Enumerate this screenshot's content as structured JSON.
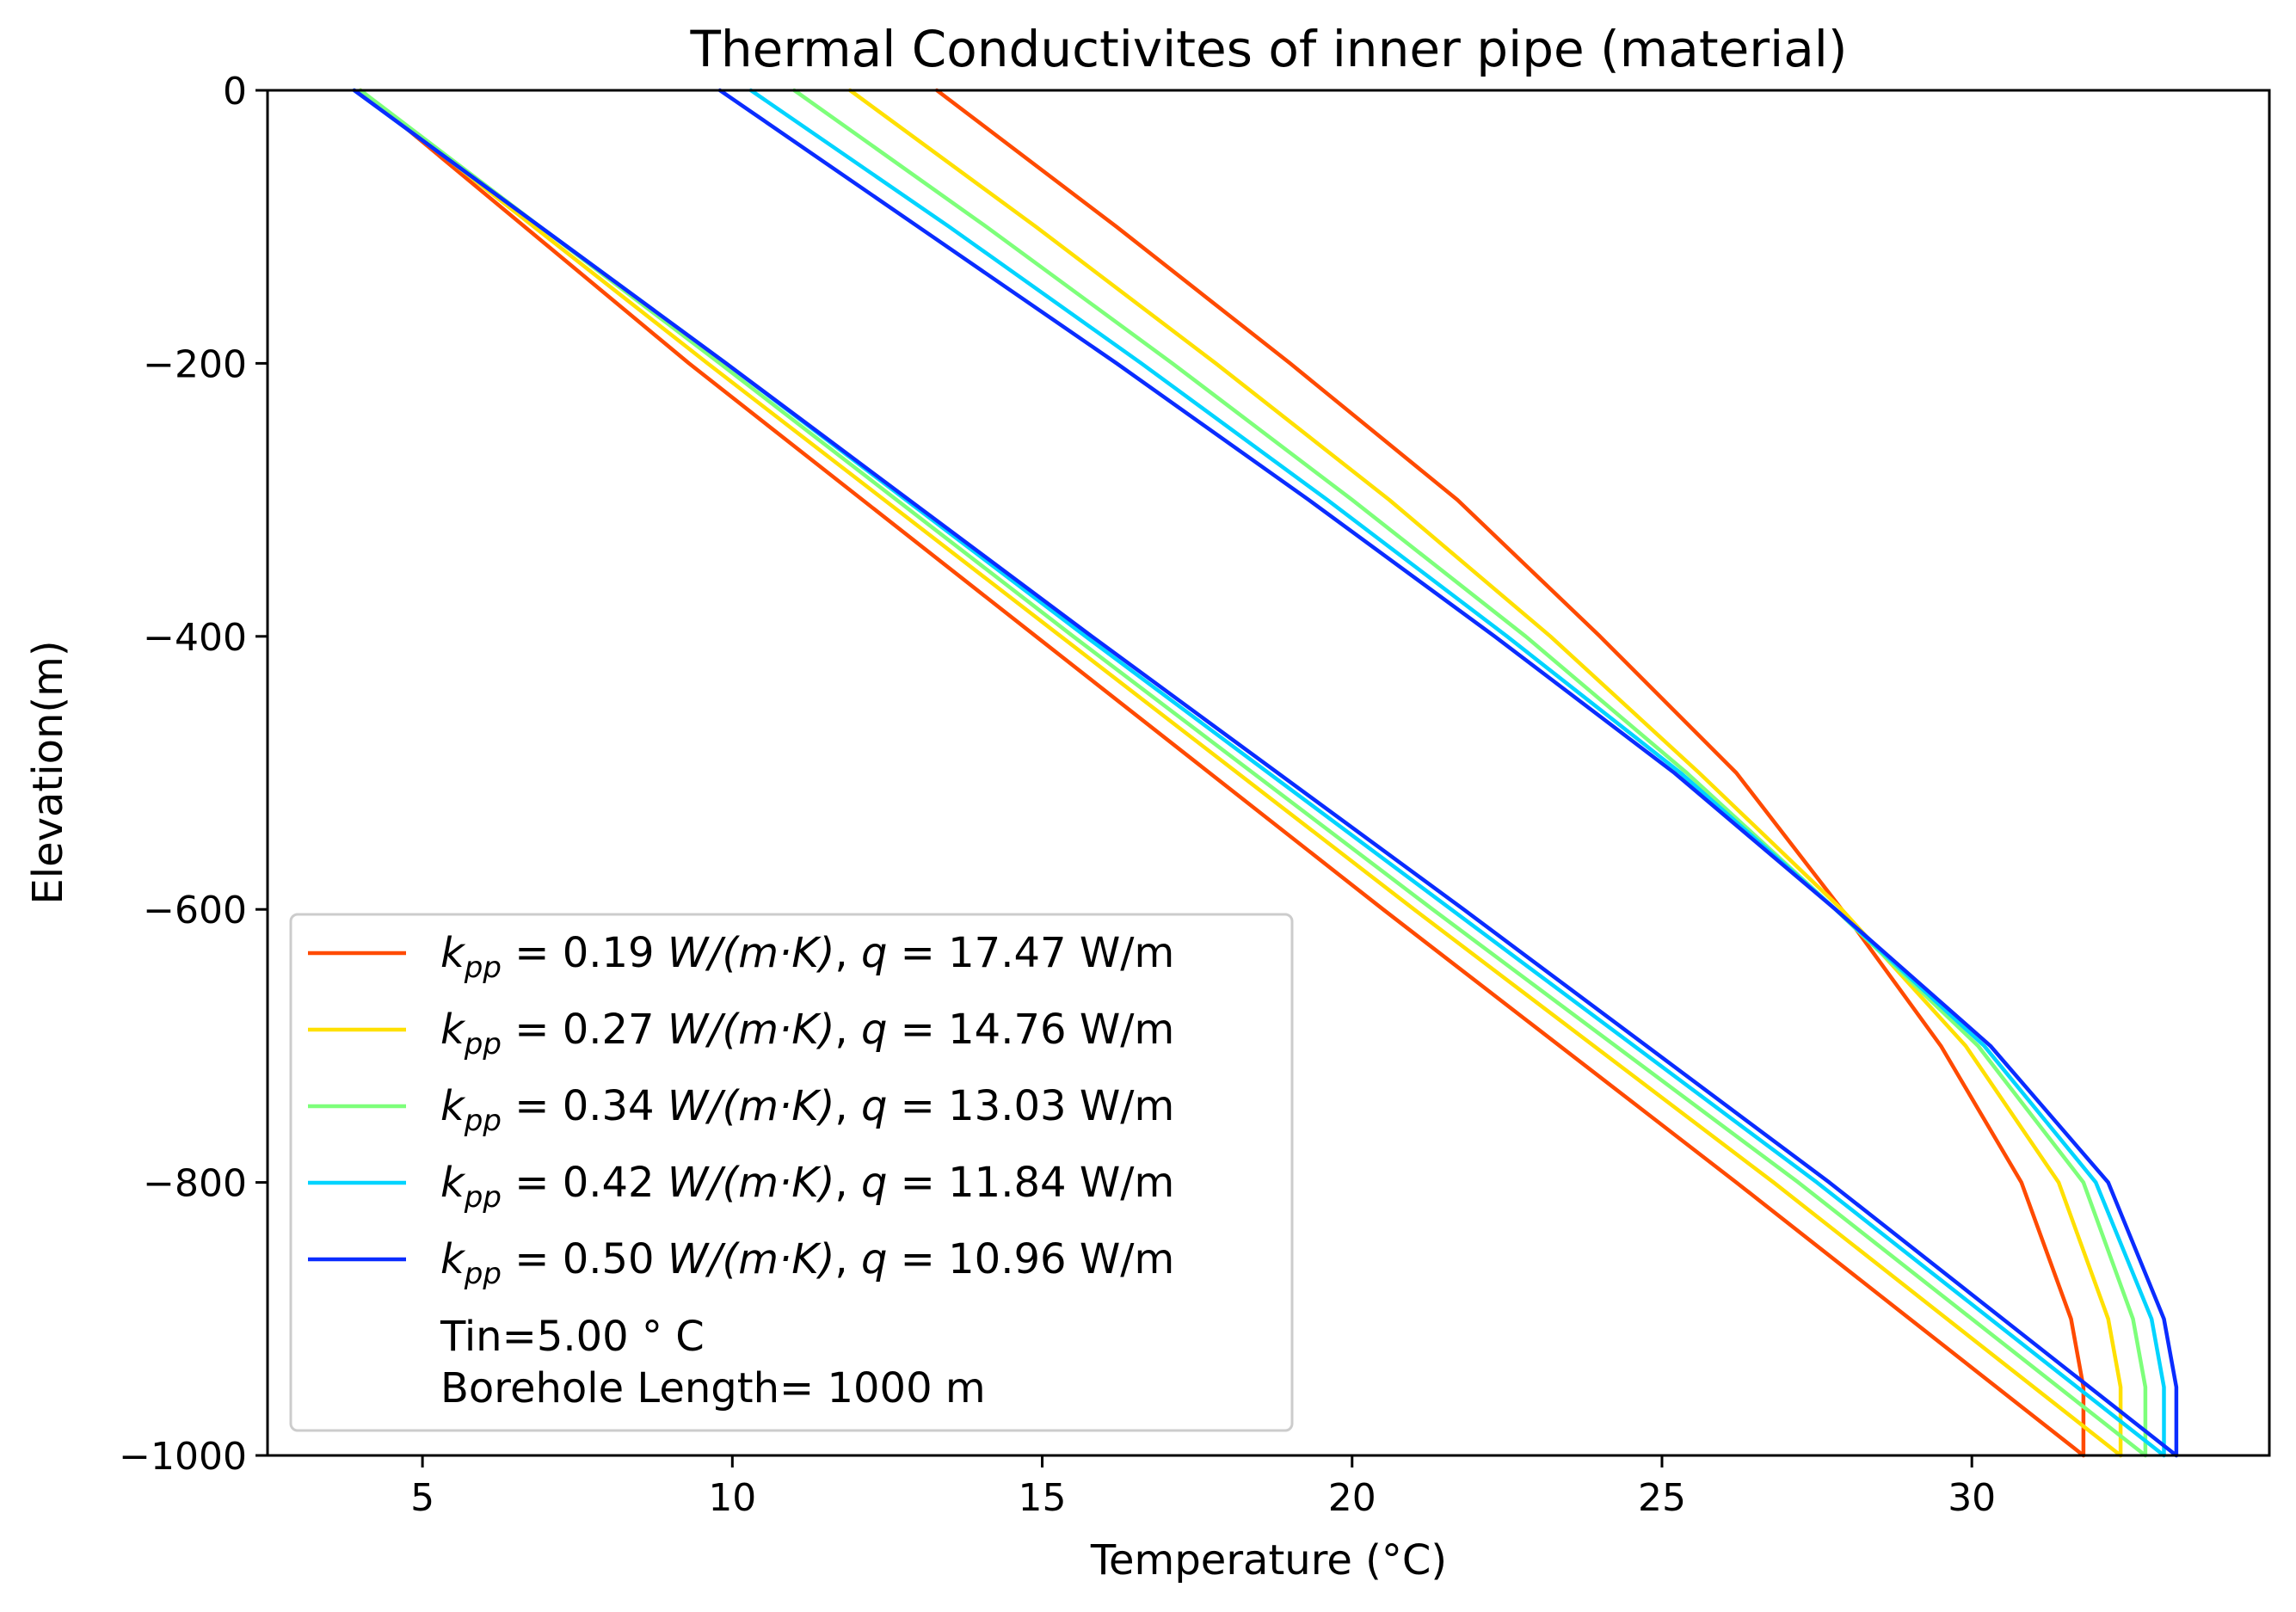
{
  "chart_data": {
    "type": "line",
    "title": "Thermal Conductivites of inner pipe (material)",
    "xlabel": "Temperature (°C)",
    "ylabel": "Elevation(m)",
    "xlim": [
      2.5,
      34.8
    ],
    "ylim": [
      -1000,
      0
    ],
    "xticks": [
      5,
      10,
      15,
      20,
      25,
      30
    ],
    "yticks": [
      0,
      -200,
      -400,
      -600,
      -800,
      -1000
    ],
    "xtick_labels": [
      "5",
      "10",
      "15",
      "20",
      "25",
      "30"
    ],
    "ytick_labels": [
      "0",
      "−200",
      "−400",
      "−600",
      "−800",
      "−1000"
    ],
    "grid": false,
    "legend_location": "lower-left",
    "annotation": [
      "Tin=5.00 ° C",
      "Borehole Length= 1000 m"
    ],
    "series": [
      {
        "name": "k_pp = 0.19 W/(m·K), q = 17.47 W/m",
        "legend": {
          "k": "k",
          "sub": "pp",
          "mid": " = 0.19 ",
          "unit": "W/(m·K)",
          "sep": ", ",
          "q": "q",
          "rest": " = 17.47 W/m"
        },
        "color": "#ff4a00",
        "downflow": {
          "elevation": [
            0,
            -200,
            -400,
            -600,
            -800,
            -1000
          ],
          "temperature": [
            4.0,
            9.3,
            14.9,
            20.5,
            26.2,
            31.8
          ]
        },
        "upflow": {
          "elevation": [
            0,
            -100,
            -200,
            -300,
            -400,
            -500,
            -600,
            -700,
            -800,
            -900,
            -950,
            -1000
          ],
          "temperature": [
            13.3,
            16.2,
            19.0,
            21.7,
            24.0,
            26.2,
            27.9,
            29.5,
            30.8,
            31.6,
            31.8,
            31.8
          ]
        }
      },
      {
        "name": "k_pp = 0.27 W/(m·K), q = 14.76 W/m",
        "legend": {
          "k": "k",
          "sub": "pp",
          "mid": " = 0.27 ",
          "unit": "W/(m·K)",
          "sep": ", ",
          "q": "q",
          "rest": " = 14.76 W/m"
        },
        "color": "#ffe000",
        "downflow": {
          "elevation": [
            0,
            -200,
            -400,
            -600,
            -800,
            -1000
          ],
          "temperature": [
            4.0,
            9.6,
            15.3,
            21.0,
            26.8,
            32.4
          ]
        },
        "upflow": {
          "elevation": [
            0,
            -100,
            -200,
            -300,
            -400,
            -500,
            -600,
            -700,
            -800,
            -900,
            -950,
            -1000
          ],
          "temperature": [
            11.9,
            14.9,
            17.8,
            20.6,
            23.2,
            25.6,
            27.9,
            29.9,
            31.4,
            32.2,
            32.4,
            32.4
          ]
        }
      },
      {
        "name": "k_pp = 0.34 W/(m·K), q = 13.03 W/m",
        "legend": {
          "k": "k",
          "sub": "pp",
          "mid": " = 0.34 ",
          "unit": "W/(m·K)",
          "sep": ", ",
          "q": "q",
          "rest": " = 13.03 W/m"
        },
        "color": "#7dff7a",
        "downflow": {
          "elevation": [
            0,
            -200,
            -400,
            -600,
            -800,
            -1000
          ],
          "temperature": [
            4.0,
            9.8,
            15.5,
            21.3,
            27.2,
            32.8
          ]
        },
        "upflow": {
          "elevation": [
            0,
            -100,
            -200,
            -300,
            -400,
            -500,
            -600,
            -700,
            -800,
            -900,
            -950,
            -1000
          ],
          "temperature": [
            11.0,
            14.1,
            17.1,
            20.0,
            22.8,
            25.4,
            27.8,
            30.1,
            31.8,
            32.6,
            32.8,
            32.8
          ]
        }
      },
      {
        "name": "k_pp = 0.42 W/(m·K), q = 11.84 W/m",
        "legend": {
          "k": "k",
          "sub": "pp",
          "mid": " = 0.42 ",
          "unit": "W/(m·K)",
          "sep": ", ",
          "q": "q",
          "rest": " = 11.84 W/m"
        },
        "color": "#00d4ff",
        "downflow": {
          "elevation": [
            0,
            -200,
            -400,
            -600,
            -800,
            -1000
          ],
          "temperature": [
            3.9,
            9.9,
            15.7,
            21.6,
            27.5,
            33.1
          ]
        },
        "upflow": {
          "elevation": [
            0,
            -100,
            -200,
            -300,
            -400,
            -500,
            -600,
            -700,
            -800,
            -900,
            -950,
            -1000
          ],
          "temperature": [
            10.3,
            13.5,
            16.6,
            19.6,
            22.5,
            25.3,
            27.8,
            30.2,
            32.0,
            32.9,
            33.1,
            33.1
          ]
        }
      },
      {
        "name": "k_pp = 0.50 W/(m·K), q = 10.96 W/m",
        "legend": {
          "k": "k",
          "sub": "pp",
          "mid": " = 0.50 ",
          "unit": "W/(m·K)",
          "sep": ", ",
          "q": "q",
          "rest": " = 10.96 W/m"
        },
        "color": "#0a2cff",
        "downflow": {
          "elevation": [
            0,
            -200,
            -400,
            -600,
            -800,
            -1000
          ],
          "temperature": [
            3.9,
            9.9,
            15.8,
            21.8,
            27.7,
            33.3
          ]
        },
        "upflow": {
          "elevation": [
            0,
            -100,
            -200,
            -300,
            -400,
            -500,
            -600,
            -700,
            -800,
            -900,
            -950,
            -1000
          ],
          "temperature": [
            9.8,
            13.0,
            16.2,
            19.3,
            22.3,
            25.2,
            27.8,
            30.3,
            32.2,
            33.1,
            33.3,
            33.3
          ]
        }
      }
    ]
  }
}
